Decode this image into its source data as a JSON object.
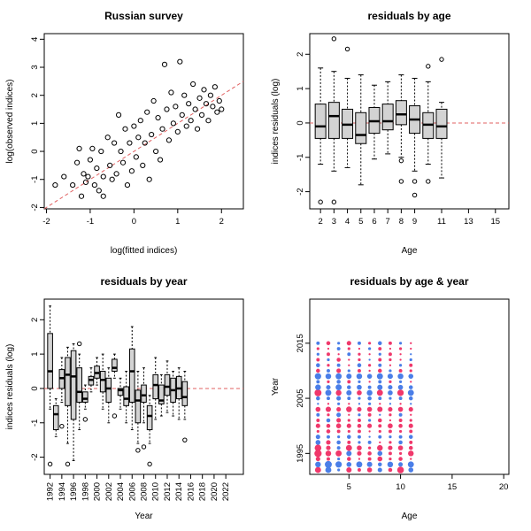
{
  "colors": {
    "ref_line": "#e06060",
    "box_fill": "#d3d3d3",
    "positive": "#f0386b",
    "negative": "#4a7ee8",
    "points": "#000000"
  },
  "chart_data": [
    {
      "type": "scatter",
      "title": "Russian survey",
      "xlabel": "log(fitted indices)",
      "ylabel": "log(observed indices)",
      "xlim": [
        -2.05,
        2.5
      ],
      "ylim": [
        -2.05,
        4.2
      ],
      "xticks": [
        "-2",
        "-1",
        "0",
        "1",
        "2"
      ],
      "yticks": [
        "-2",
        "-1",
        "0",
        "1",
        "2",
        "3",
        "4"
      ],
      "reference_line": "y = x",
      "points": [
        [
          -1.8,
          -1.2
        ],
        [
          -1.6,
          -0.9
        ],
        [
          -1.4,
          -1.2
        ],
        [
          -1.3,
          -0.4
        ],
        [
          -1.25,
          0.1
        ],
        [
          -1.2,
          -1.6
        ],
        [
          -1.15,
          -0.8
        ],
        [
          -1.1,
          -1.1
        ],
        [
          -1.05,
          -0.9
        ],
        [
          -1.0,
          -0.3
        ],
        [
          -0.95,
          0.1
        ],
        [
          -0.9,
          -1.2
        ],
        [
          -0.85,
          -0.6
        ],
        [
          -0.8,
          -1.4
        ],
        [
          -0.75,
          0.0
        ],
        [
          -0.7,
          -0.9
        ],
        [
          -0.7,
          -1.6
        ],
        [
          -0.6,
          0.5
        ],
        [
          -0.55,
          -0.5
        ],
        [
          -0.5,
          -1.0
        ],
        [
          -0.45,
          0.3
        ],
        [
          -0.4,
          -0.8
        ],
        [
          -0.35,
          1.3
        ],
        [
          -0.3,
          0.0
        ],
        [
          -0.25,
          -0.4
        ],
        [
          -0.2,
          0.8
        ],
        [
          -0.15,
          -1.2
        ],
        [
          -0.1,
          0.3
        ],
        [
          -0.05,
          -0.7
        ],
        [
          0.0,
          0.9
        ],
        [
          0.05,
          -0.2
        ],
        [
          0.1,
          0.5
        ],
        [
          0.15,
          1.1
        ],
        [
          0.2,
          -0.5
        ],
        [
          0.25,
          0.3
        ],
        [
          0.3,
          1.4
        ],
        [
          0.35,
          -1.0
        ],
        [
          0.4,
          0.6
        ],
        [
          0.45,
          1.8
        ],
        [
          0.5,
          0.0
        ],
        [
          0.55,
          1.2
        ],
        [
          0.6,
          -0.3
        ],
        [
          0.65,
          0.8
        ],
        [
          0.7,
          3.1
        ],
        [
          0.75,
          1.5
        ],
        [
          0.8,
          0.4
        ],
        [
          0.85,
          2.1
        ],
        [
          0.9,
          1.0
        ],
        [
          0.95,
          1.6
        ],
        [
          1.0,
          0.7
        ],
        [
          1.05,
          3.2
        ],
        [
          1.1,
          1.3
        ],
        [
          1.15,
          2.0
        ],
        [
          1.2,
          0.9
        ],
        [
          1.25,
          1.7
        ],
        [
          1.3,
          1.1
        ],
        [
          1.35,
          2.4
        ],
        [
          1.4,
          1.5
        ],
        [
          1.45,
          0.8
        ],
        [
          1.5,
          1.9
        ],
        [
          1.55,
          1.3
        ],
        [
          1.6,
          2.2
        ],
        [
          1.65,
          1.7
        ],
        [
          1.7,
          1.1
        ],
        [
          1.75,
          2.0
        ],
        [
          1.8,
          1.6
        ],
        [
          1.85,
          2.3
        ],
        [
          1.9,
          1.4
        ],
        [
          1.95,
          1.8
        ],
        [
          2.0,
          1.5
        ]
      ]
    },
    {
      "type": "box",
      "title": "residuals by age",
      "xlabel": "Age",
      "ylabel": "indices residuals (log)",
      "xlim": [
        1.2,
        16.0
      ],
      "ylim": [
        -2.5,
        2.6
      ],
      "xticks": [
        "2",
        "3",
        "4",
        "5",
        "6",
        "7",
        "8",
        "9",
        "11",
        "13",
        "15"
      ],
      "yticks": [
        "-2",
        "-1",
        "0",
        "1",
        "2"
      ],
      "reference_line": "y = 0",
      "boxes": [
        {
          "x": 2,
          "q1": -0.45,
          "median": -0.1,
          "q3": 0.55,
          "low": -1.2,
          "high": 1.6,
          "out": [
            -2.3
          ]
        },
        {
          "x": 3,
          "q1": -0.45,
          "median": 0.2,
          "q3": 0.6,
          "low": -1.4,
          "high": 1.5,
          "out": [
            2.45,
            -2.3
          ]
        },
        {
          "x": 4,
          "q1": -0.45,
          "median": -0.05,
          "q3": 0.4,
          "low": -1.3,
          "high": 1.3,
          "out": [
            2.15
          ]
        },
        {
          "x": 5,
          "q1": -0.6,
          "median": -0.35,
          "q3": 0.3,
          "low": -1.8,
          "high": 1.4,
          "out": []
        },
        {
          "x": 6,
          "q1": -0.3,
          "median": 0.05,
          "q3": 0.45,
          "low": -1.05,
          "high": 1.1,
          "out": []
        },
        {
          "x": 7,
          "q1": -0.2,
          "median": 0.05,
          "q3": 0.55,
          "low": -0.9,
          "high": 1.2,
          "out": []
        },
        {
          "x": 8,
          "q1": -0.05,
          "median": 0.25,
          "q3": 0.65,
          "low": -1.0,
          "high": 1.4,
          "out": [
            -1.1,
            -1.7
          ]
        },
        {
          "x": 9,
          "q1": -0.3,
          "median": 0.1,
          "q3": 0.5,
          "low": -1.4,
          "high": 1.3,
          "out": [
            -1.7,
            -2.1
          ]
        },
        {
          "x": 10,
          "q1": -0.45,
          "median": -0.05,
          "q3": 0.3,
          "low": -1.2,
          "high": 1.2,
          "out": [
            -1.7,
            1.65
          ]
        },
        {
          "x": 11,
          "q1": -0.45,
          "median": -0.1,
          "q3": 0.4,
          "low": -1.6,
          "high": 0.6,
          "out": [
            1.85
          ]
        }
      ]
    },
    {
      "type": "box",
      "title": "residuals by year",
      "xlabel": "Year",
      "ylabel": "indices residuals (log)",
      "xlim": [
        1991,
        2025
      ],
      "ylim": [
        -2.5,
        2.6
      ],
      "xticks": [
        "1992",
        "1994",
        "1996",
        "1998",
        "2000",
        "2002",
        "2004",
        "2006",
        "2008",
        "2010",
        "2012",
        "2014",
        "2016",
        "2018",
        "2020",
        "2022"
      ],
      "yticks": [
        "-2",
        "-1",
        "0",
        "1",
        "2"
      ],
      "reference_line": "y = 0",
      "boxes": [
        {
          "x": 1992,
          "q1": 0.0,
          "median": 0.5,
          "q3": 1.6,
          "low": -0.6,
          "high": 2.4,
          "out": [
            -2.2
          ]
        },
        {
          "x": 1993,
          "q1": -1.2,
          "median": -0.75,
          "q3": -0.5,
          "low": -1.4,
          "high": -0.3,
          "out": []
        },
        {
          "x": 1994,
          "q1": 0.0,
          "median": 0.3,
          "q3": 0.55,
          "low": -0.4,
          "high": 0.9,
          "out": [
            -1.1
          ]
        },
        {
          "x": 1995,
          "q1": -0.5,
          "median": 0.4,
          "q3": 0.9,
          "low": -1.6,
          "high": 1.2,
          "out": [
            -2.2
          ]
        },
        {
          "x": 1996,
          "q1": -0.9,
          "median": 0.35,
          "q3": 1.1,
          "low": -2.1,
          "high": 1.3,
          "out": []
        },
        {
          "x": 1997,
          "q1": -0.4,
          "median": -0.1,
          "q3": 0.6,
          "low": -1.2,
          "high": 1.0,
          "out": [
            1.3
          ]
        },
        {
          "x": 1998,
          "q1": -0.4,
          "median": -0.3,
          "q3": -0.1,
          "low": -0.6,
          "high": 0.1,
          "out": [
            -0.9
          ]
        },
        {
          "x": 1999,
          "q1": 0.1,
          "median": 0.25,
          "q3": 0.35,
          "low": -0.1,
          "high": 0.6,
          "out": []
        },
        {
          "x": 2000,
          "q1": 0.3,
          "median": 0.45,
          "q3": 0.65,
          "low": 0.1,
          "high": 0.9,
          "out": []
        },
        {
          "x": 2001,
          "q1": -0.1,
          "median": 0.25,
          "q3": 0.5,
          "low": -0.6,
          "high": 1.0,
          "out": []
        },
        {
          "x": 2002,
          "q1": -0.4,
          "median": 0.0,
          "q3": 0.3,
          "low": -1.0,
          "high": 0.6,
          "out": []
        },
        {
          "x": 2003,
          "q1": 0.5,
          "median": 0.6,
          "q3": 0.85,
          "low": 0.3,
          "high": 1.0,
          "out": [
            -0.8
          ]
        },
        {
          "x": 2004,
          "q1": -0.2,
          "median": -0.05,
          "q3": 0.0,
          "low": -0.6,
          "high": 0.3,
          "out": []
        },
        {
          "x": 2005,
          "q1": -0.5,
          "median": -0.3,
          "q3": 0.05,
          "low": -1.0,
          "high": 0.5,
          "out": []
        },
        {
          "x": 2006,
          "q1": -0.4,
          "median": 0.5,
          "q3": 1.15,
          "low": -1.2,
          "high": 1.8,
          "out": []
        },
        {
          "x": 2007,
          "q1": -1.0,
          "median": -0.35,
          "q3": -0.05,
          "low": -1.6,
          "high": 0.5,
          "out": [
            -1.8
          ]
        },
        {
          "x": 2008,
          "q1": -0.4,
          "median": -0.2,
          "q3": 0.1,
          "low": -1.0,
          "high": 0.6,
          "out": [
            -1.7
          ]
        },
        {
          "x": 2009,
          "q1": -1.2,
          "median": -0.8,
          "q3": -0.5,
          "low": -1.6,
          "high": -0.2,
          "out": [
            -2.2
          ]
        },
        {
          "x": 2010,
          "q1": -0.3,
          "median": 0.1,
          "q3": 0.4,
          "low": -0.9,
          "high": 0.9,
          "out": []
        },
        {
          "x": 2011,
          "q1": -0.45,
          "median": -0.35,
          "q3": 0.1,
          "low": -0.8,
          "high": 0.4,
          "out": []
        },
        {
          "x": 2012,
          "q1": -0.2,
          "median": 0.05,
          "q3": 0.4,
          "low": -0.7,
          "high": 0.8,
          "out": []
        },
        {
          "x": 2013,
          "q1": -0.4,
          "median": -0.05,
          "q3": 0.3,
          "low": -0.8,
          "high": 0.5,
          "out": []
        },
        {
          "x": 2014,
          "q1": -0.3,
          "median": 0.0,
          "q3": 0.35,
          "low": -0.9,
          "high": 0.6,
          "out": []
        },
        {
          "x": 2015,
          "q1": -0.5,
          "median": -0.25,
          "q3": 0.2,
          "low": -0.9,
          "high": 0.5,
          "out": [
            -1.5
          ]
        }
      ]
    },
    {
      "type": "bubble",
      "title": "residuals by age & year",
      "xlabel": "Age",
      "ylabel": "Year",
      "xlim": [
        1.2,
        20.5
      ],
      "ylim": [
        1991.2,
        2023
      ],
      "xticks": [
        "5",
        "10",
        "15",
        "20"
      ],
      "yticks": [
        "1995",
        "2005",
        "2015"
      ],
      "ages": [
        2,
        3,
        4,
        5,
        6,
        7,
        8,
        9,
        10,
        11
      ],
      "years": [
        1992,
        1993,
        1994,
        1995,
        1996,
        1997,
        1998,
        1999,
        2000,
        2001,
        2002,
        2003,
        2004,
        2005,
        2006,
        2007,
        2008,
        2009,
        2010,
        2011,
        2012,
        2013,
        2014,
        2015
      ],
      "note": "bubble size ~ |residual|; pink = positive, blue = negative",
      "residuals": [
        [
          0.9,
          -0.9,
          -0.2,
          0.7,
          0.3,
          0.6,
          -0.5,
          0.4,
          1.1,
          -0.6
        ],
        [
          -0.8,
          -1.2,
          -1.0,
          -0.6,
          -0.9,
          -0.7,
          -0.4,
          -0.8,
          -0.5,
          -0.9
        ],
        [
          0.5,
          0.3,
          -0.2,
          0.4,
          0.1,
          0.3,
          0.6,
          0.2,
          0.4,
          0.1
        ],
        [
          1.3,
          0.8,
          0.9,
          -0.7,
          0.5,
          0.4,
          -0.6,
          0.3,
          0.2,
          0.8
        ],
        [
          1.1,
          0.5,
          -0.3,
          0.9,
          0.6,
          0.2,
          0.8,
          0.5,
          0.6,
          0.4
        ],
        [
          -0.6,
          0.5,
          -0.4,
          0.3,
          -0.2,
          -0.3,
          0.1,
          0.2,
          -0.4,
          0.3
        ],
        [
          -0.5,
          -0.3,
          -0.2,
          -0.4,
          -0.3,
          -0.1,
          -0.3,
          -0.2,
          -0.3,
          -0.4
        ],
        [
          0.2,
          0.4,
          0.3,
          0.2,
          0.3,
          0.1,
          0.2,
          0.3,
          0.2,
          0.3
        ],
        [
          0.5,
          0.4,
          0.6,
          0.5,
          0.4,
          0.5,
          0.3,
          0.6,
          0.4,
          0.5
        ],
        [
          0.3,
          -0.4,
          0.5,
          0.2,
          0.3,
          -0.2,
          0.4,
          0.1,
          0.3,
          0.2
        ],
        [
          -0.3,
          0.2,
          -0.5,
          0.1,
          -0.2,
          0.3,
          -0.1,
          0.2,
          -0.3,
          0.1
        ],
        [
          0.6,
          0.7,
          0.5,
          0.8,
          0.5,
          0.6,
          0.7,
          0.5,
          0.6,
          0.5
        ],
        [
          -0.1,
          0.1,
          -0.2,
          0.1,
          -0.1,
          -0.2,
          0.1,
          -0.1,
          0.1,
          -0.1
        ],
        [
          -0.4,
          -0.3,
          -0.5,
          -0.3,
          -0.2,
          -0.4,
          -0.3,
          -0.2,
          -0.3,
          -0.4
        ],
        [
          1.2,
          -0.9,
          0.8,
          -0.7,
          0.6,
          -0.8,
          0.9,
          -0.6,
          1.0,
          -0.9
        ],
        [
          -0.8,
          -0.5,
          -0.9,
          -0.4,
          -0.6,
          -0.3,
          -0.7,
          -0.5,
          -0.6,
          -0.4
        ],
        [
          -0.3,
          0.2,
          -0.4,
          0.3,
          -0.2,
          0.1,
          -0.3,
          0.2,
          -0.2,
          0.1
        ],
        [
          -1.0,
          -0.8,
          -0.9,
          -0.7,
          -0.8,
          -0.6,
          -0.9,
          -0.7,
          -0.8,
          -0.6
        ],
        [
          0.4,
          -0.3,
          0.5,
          -0.2,
          0.3,
          0.1,
          0.4,
          -0.2,
          0.3,
          0.2
        ],
        [
          -0.4,
          0.2,
          -0.3,
          0.1,
          -0.4,
          0.2,
          -0.3,
          0.1,
          -0.2,
          0.3
        ],
        [
          0.3,
          -0.2,
          0.4,
          0.1,
          0.2,
          -0.1,
          0.3,
          0.2,
          0.1,
          -0.2
        ],
        [
          -0.2,
          0.3,
          0.1,
          -0.3,
          0.2,
          0.1,
          -0.2,
          0.3,
          0.1,
          -0.1
        ],
        [
          0.2,
          0.1,
          -0.3,
          0.2,
          0.1,
          -0.2,
          0.3,
          0.1,
          0.2,
          0.1
        ],
        [
          -0.3,
          0.4,
          -0.2,
          0.5,
          -0.3,
          0.2,
          -0.4,
          0.3,
          -0.2,
          0.1
        ]
      ]
    }
  ]
}
